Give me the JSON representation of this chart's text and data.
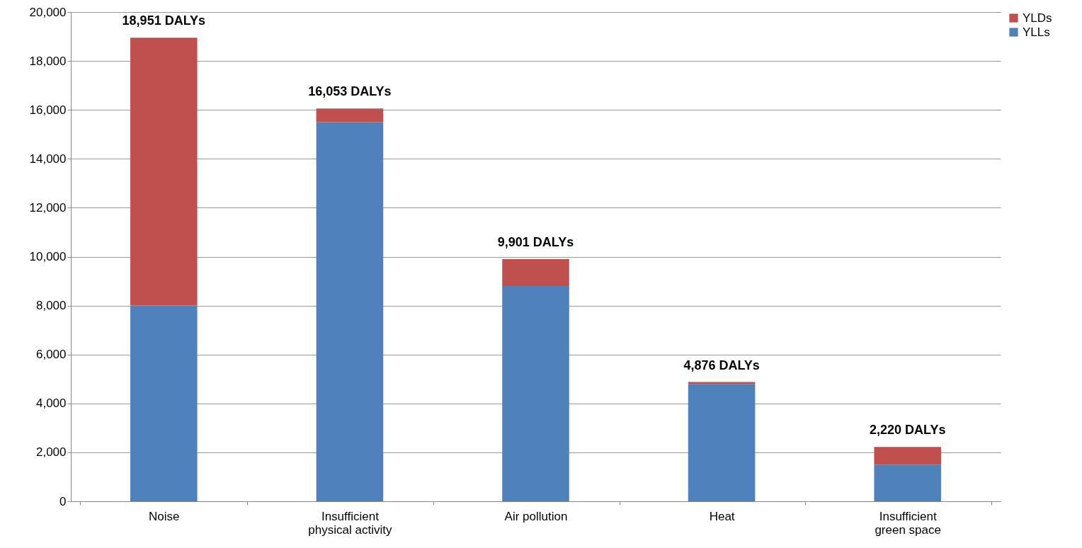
{
  "chart_data": {
    "type": "bar",
    "stacked": true,
    "categories": [
      "Noise",
      "Insufficient\nphysical activity",
      "Air pollution",
      "Heat",
      "Insufficient\ngreen space"
    ],
    "series": [
      {
        "name": "YLLs",
        "color": "#4f81bd",
        "values": [
          8000,
          15500,
          8800,
          4800,
          1500
        ]
      },
      {
        "name": "YLDs",
        "color": "#c0504d",
        "values": [
          10951,
          553,
          1101,
          76,
          720
        ]
      }
    ],
    "totals": [
      "18,951 DALYs",
      "16,053 DALYs",
      "9,901 DALYs",
      "4,876 DALYs",
      "2,220 DALYs"
    ],
    "ylim": [
      0,
      20000
    ],
    "yticks": [
      0,
      {
        "value": 2000,
        "label": "2,000"
      },
      {
        "value": 4000,
        "label": "4,000"
      },
      {
        "value": 6000,
        "label": "6,000"
      },
      {
        "value": 8000,
        "label": "8,000"
      },
      {
        "value": 10000,
        "label": "10,000"
      },
      {
        "value": 12000,
        "label": "12,000"
      },
      {
        "value": 14000,
        "label": "14,000"
      },
      {
        "value": 16000,
        "label": "16,000"
      },
      {
        "value": 18000,
        "label": "18,000"
      },
      {
        "value": 20000,
        "label": "20,000"
      }
    ],
    "grid": "y",
    "legend": "top right"
  }
}
